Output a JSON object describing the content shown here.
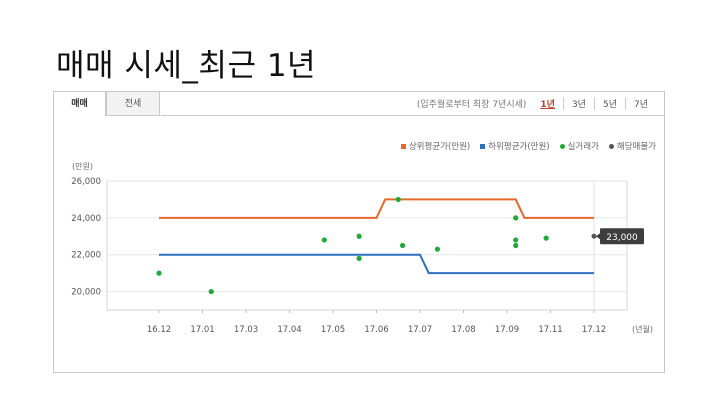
{
  "slide_title": "매매 시세_최근 1년",
  "tabs": [
    {
      "label": "매매",
      "active": true
    },
    {
      "label": "전세",
      "active": false
    }
  ],
  "period": {
    "note": "(입주월로부터 최장 7년시세)",
    "options": [
      {
        "label": "1년",
        "active": true
      },
      {
        "label": "3년",
        "active": false
      },
      {
        "label": "5년",
        "active": false
      },
      {
        "label": "7년",
        "active": false
      }
    ]
  },
  "legend": [
    {
      "label": "상위평균가(만원)",
      "color": "#e8682a",
      "shape": "square"
    },
    {
      "label": "하위평균가(만원)",
      "color": "#2f6fc0",
      "shape": "square"
    },
    {
      "label": "실거래가",
      "color": "#22a83a",
      "shape": "dot"
    },
    {
      "label": "해당매물가",
      "color": "#555555",
      "shape": "dot"
    }
  ],
  "chart_data": {
    "type": "line",
    "ylabel": "(만원)",
    "xlabel": "(년월)",
    "ylim": [
      19000,
      26000
    ],
    "yticks": [
      20000,
      22000,
      24000,
      26000
    ],
    "ytick_labels": [
      "20,000",
      "22,000",
      "24,000",
      "26,000"
    ],
    "x_tick_labels": [
      "16.12",
      "17.01",
      "17.03",
      "17.04",
      "17.05",
      "17.06",
      "17.07",
      "17.08",
      "17.09",
      "17.11",
      "17.12"
    ],
    "x_tick_pos": [
      0,
      1,
      2,
      3,
      4,
      5,
      6,
      7,
      8,
      9,
      10
    ],
    "xlim": [
      0,
      10
    ],
    "series": [
      {
        "name": "상위평균가(만원)",
        "color": "#e8682a",
        "x": [
          0,
          5.0,
          5.2,
          8.2,
          8.4,
          10
        ],
        "y": [
          24000,
          24000,
          25000,
          25000,
          24000,
          24000
        ]
      },
      {
        "name": "하위평균가(만원)",
        "color": "#2f6fc0",
        "x": [
          0,
          6.0,
          6.2,
          10
        ],
        "y": [
          22000,
          22000,
          21000,
          21000
        ]
      }
    ],
    "scatter": {
      "name": "실거래가",
      "color": "#22a83a",
      "x": [
        0.0,
        1.2,
        3.8,
        4.6,
        4.6,
        5.5,
        5.6,
        6.4,
        8.2,
        8.2,
        8.2,
        8.9
      ],
      "y": [
        21000,
        20000,
        22800,
        23000,
        21800,
        25000,
        22500,
        22300,
        24000,
        22800,
        22500,
        22900
      ]
    },
    "current": {
      "name": "해당매물가",
      "x": 10,
      "y": 23000,
      "label": "23,000",
      "color": "#555555"
    }
  }
}
